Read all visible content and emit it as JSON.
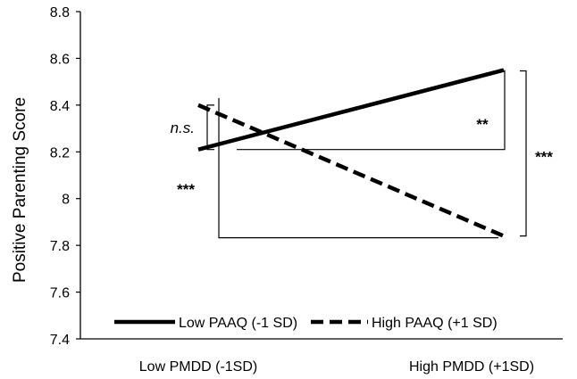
{
  "chart_data": {
    "type": "line",
    "title": "",
    "xlabel": "",
    "ylabel": "Positive Parenting Score",
    "categories": [
      "Low PMDD (-1SD)",
      "High PMDD (+1SD)"
    ],
    "ylim": [
      7.4,
      8.8
    ],
    "yticks": [
      7.4,
      7.6,
      7.8,
      8,
      8.2,
      8.4,
      8.6,
      8.8
    ],
    "ytick_labels": [
      "7.4",
      "7.6",
      "7.8",
      "8",
      "8.2",
      "8.4",
      "8.6",
      "8.8"
    ],
    "grid": false,
    "legend_position": "bottom",
    "series": [
      {
        "name": "Low PAAQ (-1 SD)",
        "values": [
          8.21,
          8.55
        ],
        "line_style": "solid",
        "color": "#000000"
      },
      {
        "name": "High PAAQ (+1 SD)",
        "values": [
          8.4,
          7.84
        ],
        "line_style": "dashed",
        "color": "#000000"
      }
    ],
    "annotations": [
      {
        "text": "n.s.",
        "style": "italic",
        "compares": "Low PMDD (-1SD): Low PAAQ vs High PAAQ"
      },
      {
        "text": "**",
        "compares": "Low PAAQ: Low PMDD vs High PMDD"
      },
      {
        "text": "***",
        "compares": "High PAAQ: Low PMDD vs High PMDD"
      },
      {
        "text": "***",
        "compares": "High PMDD (+1SD): Low PAAQ vs High PAAQ"
      }
    ]
  }
}
